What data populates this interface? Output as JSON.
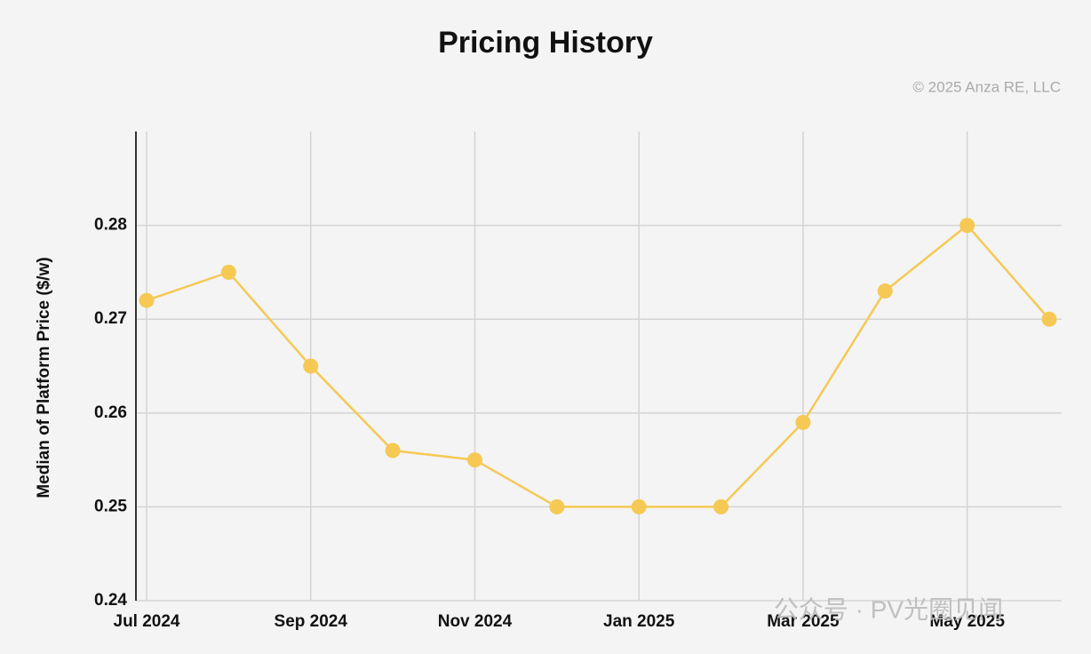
{
  "chart_data": {
    "type": "line",
    "title": "Pricing History",
    "copyright": "© 2025 Anza RE, LLC",
    "y_label": "Median of Platform Price ($/w)",
    "categories": [
      "Jul 2024",
      null,
      "Sep 2024",
      null,
      "Nov 2024",
      null,
      "Jan 2025",
      null,
      "Mar 2025",
      null,
      "May 2025",
      null
    ],
    "series": [
      {
        "name": "Median of Platform Price",
        "color": "#f5c954",
        "values": [
          0.272,
          0.275,
          0.265,
          0.256,
          0.255,
          0.25,
          0.25,
          0.25,
          0.259,
          0.273,
          0.28,
          0.27
        ]
      }
    ],
    "ylim": [
      0.24,
      0.29
    ],
    "yticks": [
      0.24,
      0.25,
      0.26,
      0.27,
      0.28
    ],
    "grid": true
  },
  "watermark": "公众号 · PV光圈见闻"
}
